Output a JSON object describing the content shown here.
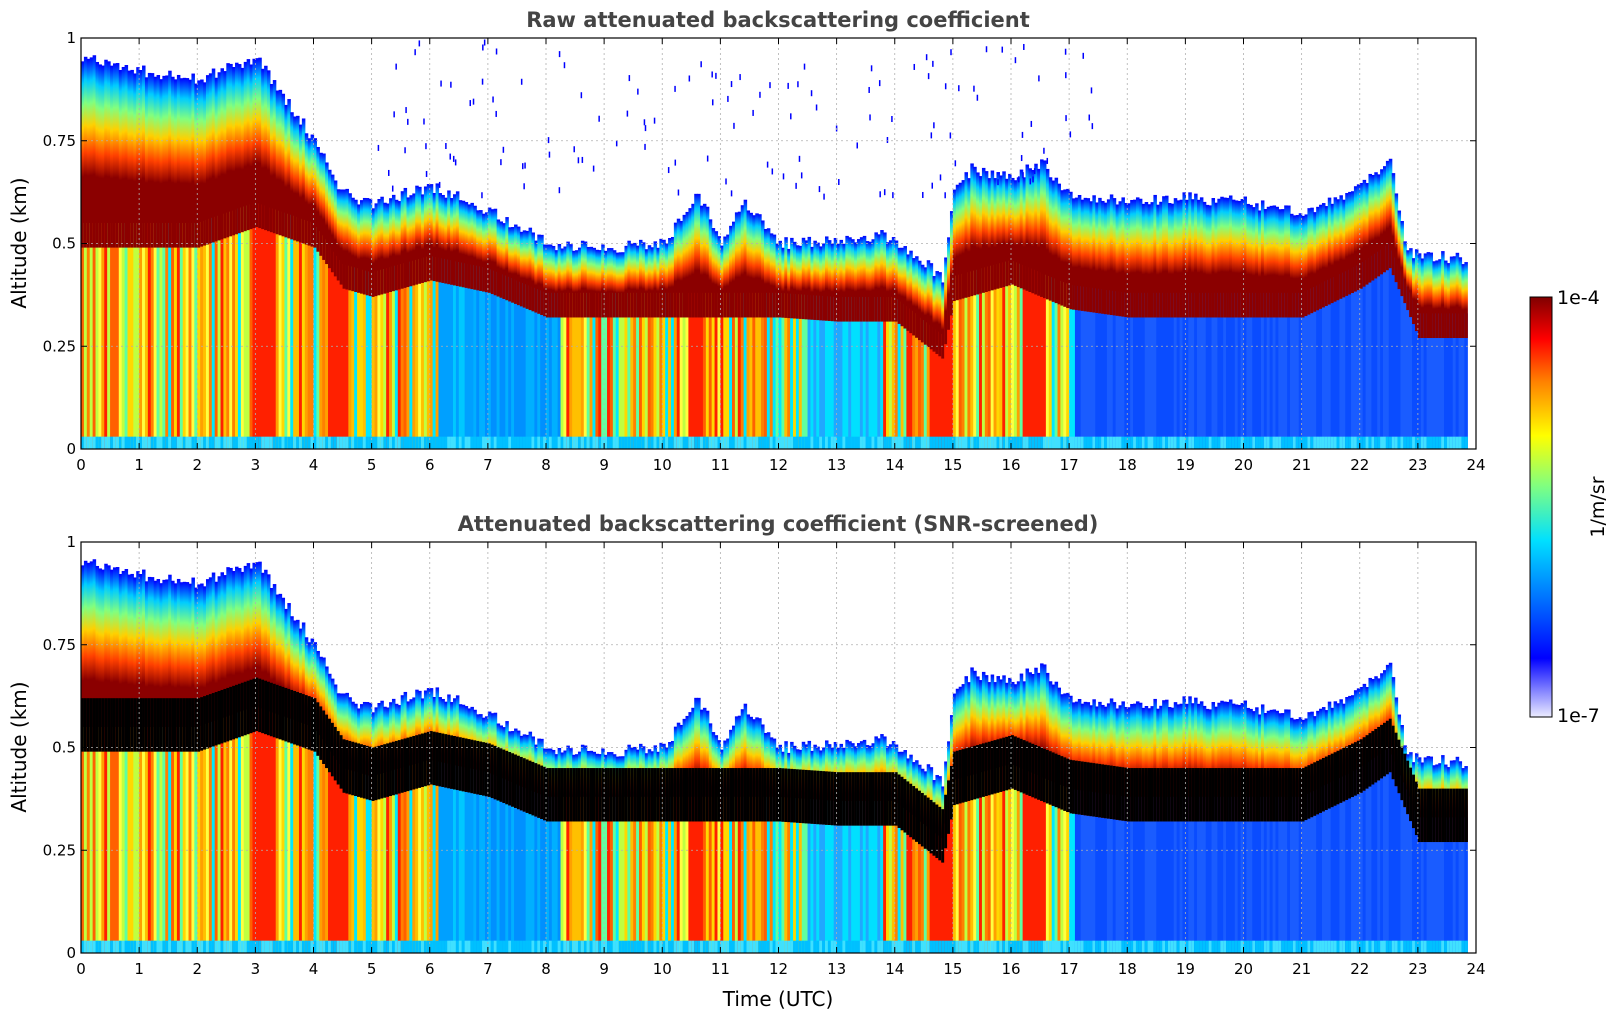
{
  "chart_data": [
    {
      "type": "heatmap",
      "title": "Raw attenuated backscattering coefficient",
      "xlabel": "",
      "ylabel": "Altitude (km)",
      "xlim": [
        0,
        24
      ],
      "ylim": [
        0,
        1
      ],
      "x_ticks": [
        "0",
        "1",
        "2",
        "3",
        "4",
        "5",
        "6",
        "7",
        "8",
        "9",
        "10",
        "11",
        "12",
        "13",
        "14",
        "15",
        "16",
        "17",
        "18",
        "19",
        "20",
        "21",
        "22",
        "23",
        "24"
      ],
      "y_ticks": [
        "0",
        "0.25",
        "0.5",
        "0.75",
        "1"
      ],
      "grid": true,
      "data_end_hour": 23.85,
      "layer_top_km": {
        "hours": [
          0,
          1,
          2,
          3,
          3.5,
          4,
          4.5,
          5,
          6,
          7,
          8,
          9,
          10,
          10.6,
          11,
          11.4,
          12,
          13,
          13.8,
          14.5,
          14.8,
          15,
          15.3,
          16,
          16.5,
          17,
          18,
          19,
          20,
          21,
          21.5,
          22,
          22.5,
          22.8,
          23.85
        ],
        "values": [
          0.95,
          0.92,
          0.9,
          0.95,
          0.85,
          0.75,
          0.62,
          0.6,
          0.64,
          0.58,
          0.5,
          0.49,
          0.5,
          0.62,
          0.5,
          0.6,
          0.5,
          0.51,
          0.52,
          0.45,
          0.42,
          0.62,
          0.68,
          0.66,
          0.7,
          0.62,
          0.6,
          0.61,
          0.6,
          0.58,
          0.6,
          0.65,
          0.7,
          0.48,
          0.46
        ]
      },
      "layer_core_km": {
        "hours": [
          0,
          2,
          3,
          4,
          4.5,
          5,
          6,
          7,
          8,
          9,
          10,
          10.6,
          11,
          12,
          13,
          14,
          14.8,
          15,
          16,
          17,
          18,
          19,
          20,
          21,
          22,
          22.5,
          23,
          23.85
        ],
        "values": [
          0.55,
          0.55,
          0.6,
          0.55,
          0.45,
          0.43,
          0.47,
          0.44,
          0.38,
          0.38,
          0.38,
          0.38,
          0.38,
          0.38,
          0.37,
          0.37,
          0.28,
          0.42,
          0.46,
          0.4,
          0.38,
          0.38,
          0.38,
          0.38,
          0.45,
          0.5,
          0.33,
          0.33
        ]
      },
      "colorbar": {
        "label": "1/m/sr",
        "min_label": "1e-7",
        "max_label": "1e-4",
        "scale": "log",
        "colormap": "jet"
      }
    },
    {
      "type": "heatmap",
      "title": "Attenuated backscattering coefficient (SNR-screened)",
      "xlabel": "Time (UTC)",
      "ylabel": "Altitude (km)",
      "xlim": [
        0,
        24
      ],
      "ylim": [
        0,
        1
      ],
      "x_ticks": [
        "0",
        "1",
        "2",
        "3",
        "4",
        "5",
        "6",
        "7",
        "8",
        "9",
        "10",
        "11",
        "12",
        "13",
        "14",
        "15",
        "16",
        "17",
        "18",
        "19",
        "20",
        "21",
        "22",
        "23",
        "24"
      ],
      "y_ticks": [
        "0",
        "0.25",
        "0.5",
        "0.75",
        "1"
      ],
      "grid": true,
      "screened_color": "#000000",
      "note_saturated": "values above colour range shown black"
    }
  ]
}
